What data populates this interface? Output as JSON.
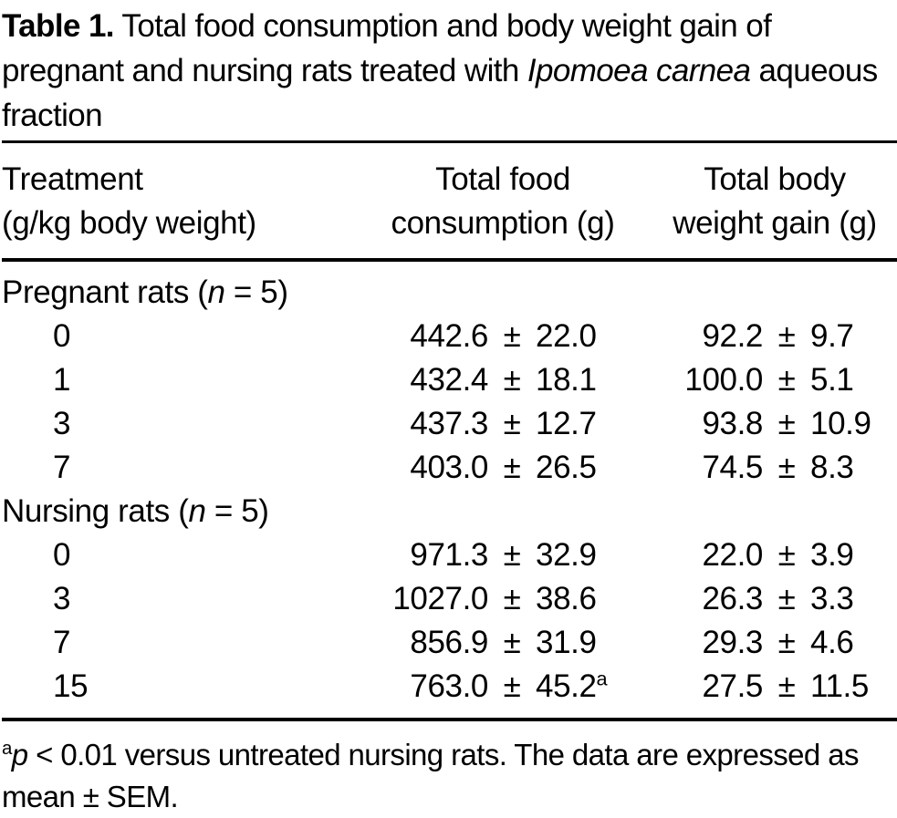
{
  "caption": {
    "runs": [
      {
        "text": "Table 1.",
        "style": "bold"
      },
      {
        "text": " Total food consumption and body weight gain of pregnant and nursing rats treated with ",
        "style": "normal"
      },
      {
        "text": "Ipomoea carnea",
        "style": "italic"
      },
      {
        "text": " aqueous fraction",
        "style": "normal"
      }
    ]
  },
  "header": {
    "columns": [
      {
        "lines": [
          "Treatment",
          "(g/kg body weight)"
        ]
      },
      {
        "lines": [
          "Total food",
          "consumption (g)"
        ]
      },
      {
        "lines": [
          "Total body",
          "weight gain (g)"
        ]
      }
    ]
  },
  "table": {
    "plus_minus": "±",
    "sections": [
      {
        "label_runs": [
          {
            "text": "Pregnant rats (",
            "style": "normal"
          },
          {
            "text": "n",
            "style": "italic"
          },
          {
            "text": " = 5)",
            "style": "normal"
          }
        ],
        "rows": [
          {
            "dose": "0",
            "food_mean": "442.6",
            "food_sem": "22.0",
            "food_sup": "",
            "body_mean": "92.2",
            "body_sem": "9.7",
            "body_sup": ""
          },
          {
            "dose": "1",
            "food_mean": "432.4",
            "food_sem": "18.1",
            "food_sup": "",
            "body_mean": "100.0",
            "body_sem": "5.1",
            "body_sup": ""
          },
          {
            "dose": "3",
            "food_mean": "437.3",
            "food_sem": "12.7",
            "food_sup": "",
            "body_mean": "93.8",
            "body_sem": "10.9",
            "body_sup": ""
          },
          {
            "dose": "7",
            "food_mean": "403.0",
            "food_sem": "26.5",
            "food_sup": "",
            "body_mean": "74.5",
            "body_sem": "8.3",
            "body_sup": ""
          }
        ]
      },
      {
        "label_runs": [
          {
            "text": "Nursing rats (",
            "style": "normal"
          },
          {
            "text": "n",
            "style": "italic"
          },
          {
            "text": " = 5)",
            "style": "normal"
          }
        ],
        "rows": [
          {
            "dose": "0",
            "food_mean": "971.3",
            "food_sem": "32.9",
            "food_sup": "",
            "body_mean": "22.0",
            "body_sem": "3.9",
            "body_sup": ""
          },
          {
            "dose": "3",
            "food_mean": "1027.0",
            "food_sem": "38.6",
            "food_sup": "",
            "body_mean": "26.3",
            "body_sem": "3.3",
            "body_sup": ""
          },
          {
            "dose": "7",
            "food_mean": "856.9",
            "food_sem": "31.9",
            "food_sup": "",
            "body_mean": "29.3",
            "body_sem": "4.6",
            "body_sup": ""
          },
          {
            "dose": "15",
            "food_mean": "763.0",
            "food_sem": "45.2",
            "food_sup": "a",
            "body_mean": "27.5",
            "body_sem": "11.5",
            "body_sup": ""
          }
        ]
      }
    ]
  },
  "footnote": {
    "runs": [
      {
        "text": "a",
        "style": "sup"
      },
      {
        "text": "p",
        "style": "italic"
      },
      {
        "text": " < 0.01 versus untreated nursing rats. The data are expressed as mean ± SEM.",
        "style": "normal"
      }
    ]
  },
  "chart_data": {
    "type": "table",
    "title": "Table 1. Total food consumption and body weight gain of pregnant and nursing rats treated with Ipomoea carnea aqueous fraction",
    "columns": [
      "Treatment (g/kg body weight)",
      "Total food consumption (g)",
      "Total body weight gain (g)"
    ],
    "sections": [
      {
        "group": "Pregnant rats (n = 5)",
        "rows": [
          {
            "treatment": 0,
            "total_food_consumption_g": "442.6 ± 22.0",
            "total_body_weight_gain_g": "92.2 ± 9.7"
          },
          {
            "treatment": 1,
            "total_food_consumption_g": "432.4 ± 18.1",
            "total_body_weight_gain_g": "100.0 ± 5.1"
          },
          {
            "treatment": 3,
            "total_food_consumption_g": "437.3 ± 12.7",
            "total_body_weight_gain_g": "93.8 ± 10.9"
          },
          {
            "treatment": 7,
            "total_food_consumption_g": "403.0 ± 26.5",
            "total_body_weight_gain_g": "74.5 ± 8.3"
          }
        ]
      },
      {
        "group": "Nursing rats (n = 5)",
        "rows": [
          {
            "treatment": 0,
            "total_food_consumption_g": "971.3 ± 32.9",
            "total_body_weight_gain_g": "22.0 ± 3.9"
          },
          {
            "treatment": 3,
            "total_food_consumption_g": "1027.0 ± 38.6",
            "total_body_weight_gain_g": "26.3 ± 3.3"
          },
          {
            "treatment": 7,
            "total_food_consumption_g": "856.9 ± 31.9",
            "total_body_weight_gain_g": "29.3 ± 4.6"
          },
          {
            "treatment": 15,
            "total_food_consumption_g": "763.0 ± 45.2 (a)",
            "total_body_weight_gain_g": "27.5 ± 11.5"
          }
        ]
      }
    ],
    "footnote": "a p < 0.01 versus untreated nursing rats. The data are expressed as mean ± SEM."
  }
}
